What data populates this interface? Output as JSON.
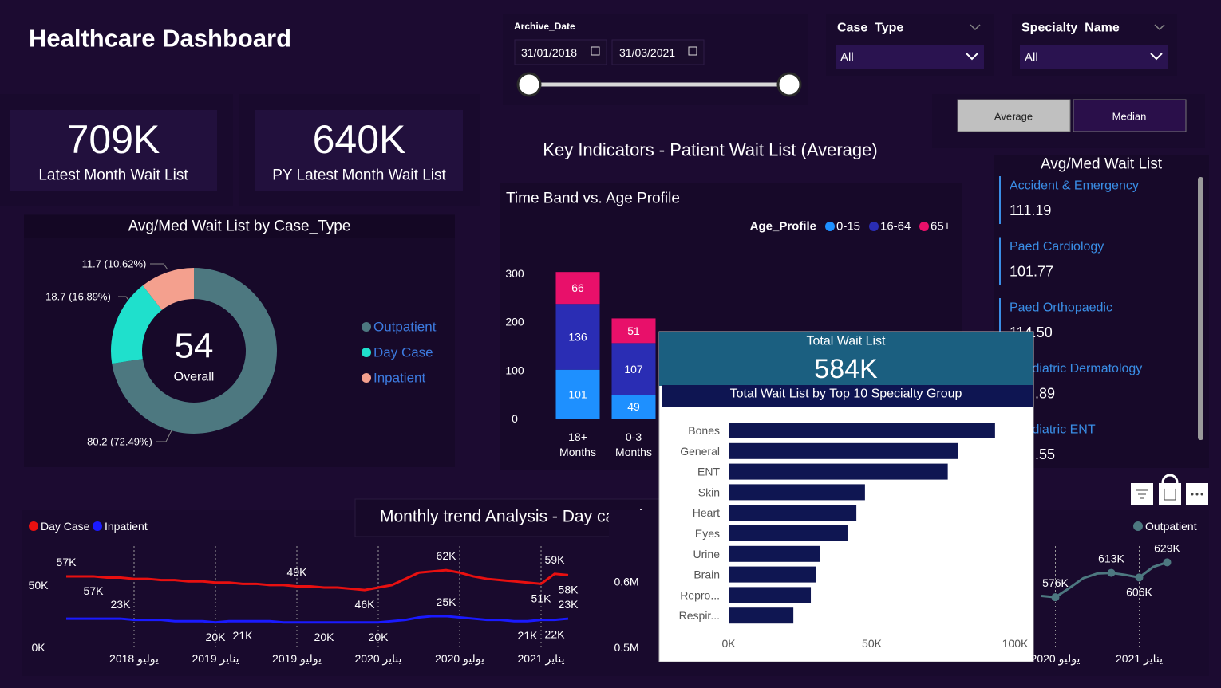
{
  "header": {
    "title": "Healthcare Dashboard"
  },
  "filters": {
    "archive_date": {
      "label": "Archive_Date",
      "start": "31/01/2018",
      "end": "31/03/2021"
    },
    "case_type": {
      "label": "Case_Type",
      "value": "All"
    },
    "specialty": {
      "label": "Specialty_Name",
      "value": "All"
    },
    "toggle": [
      "Average",
      "Median"
    ]
  },
  "kpis": [
    {
      "value": "709K",
      "label": "Latest Month Wait List"
    },
    {
      "value": "640K",
      "label": "PY Latest Month Wait List"
    }
  ],
  "section_title": "Key Indicators - Patient Wait List (Average)",
  "wait_list": {
    "title": "Avg/Med Wait List",
    "items": [
      {
        "name": "Accident & Emergency",
        "value": "111.19"
      },
      {
        "name": "Paed Cardiology",
        "value": "101.77"
      },
      {
        "name": "Paed Orthopaedic",
        "value": "114.50"
      },
      {
        "name": "Paediatric Dermatology",
        "value": ".89"
      },
      {
        "name": "Paediatric ENT",
        "value": ".55"
      }
    ]
  },
  "tooltip": {
    "title": "Total Wait List",
    "value": "584K"
  },
  "chart_data": [
    {
      "type": "donut",
      "title": "Avg/Med Wait List by Case_Type",
      "categories": [
        "Outpatient",
        "Day Case",
        "Inpatient"
      ],
      "values": [
        80.2,
        18.7,
        11.7
      ],
      "value_labels": [
        "80.2 (72.49%)",
        "18.7 (16.89%)",
        "11.7 (10.62%)"
      ],
      "colors": [
        "#4d7880",
        "#1fe0cc",
        "#f4a08e"
      ],
      "center_value": 54,
      "center_label": "Overall"
    },
    {
      "type": "stacked_bar",
      "title": "Time Band vs. Age Profile",
      "legend_title": "Age_Profile",
      "categories": [
        "18+ Months",
        "0-3 Months"
      ],
      "series": [
        {
          "name": "0-15",
          "color": "#1e90ff",
          "values": [
            101,
            49
          ]
        },
        {
          "name": "16-64",
          "color": "#2a2db4",
          "values": [
            136,
            107
          ]
        },
        {
          "name": "65+",
          "color": "#e8106a",
          "values": [
            66,
            51
          ]
        }
      ],
      "ylim": [
        0,
        300
      ],
      "yticks": [
        0,
        100,
        200,
        300
      ]
    },
    {
      "type": "hbar",
      "title": "Total Wait List by Top 10 Specialty Group",
      "categories": [
        "Bones",
        "General",
        "ENT",
        "Skin",
        "Heart",
        "Eyes",
        "Urine",
        "Brain",
        "Repro...",
        "Respir..."
      ],
      "values": [
        93000,
        80000,
        76500,
        47600,
        44600,
        41500,
        32000,
        30400,
        28700,
        22600
      ],
      "color": "#0f1652",
      "xlim": [
        0,
        100000
      ],
      "xticks": [
        {
          "value": 0,
          "label": "0K"
        },
        {
          "value": 50000,
          "label": "50K"
        },
        {
          "value": 100000,
          "label": "100K"
        }
      ]
    },
    {
      "type": "line",
      "title": "Monthly trend Analysis - Day case /",
      "categories": [
        null,
        null,
        null,
        null,
        null,
        "يوليو 2018",
        null,
        null,
        null,
        null,
        null,
        "يناير 2019",
        null,
        null,
        null,
        null,
        null,
        "يوليو 2019",
        null,
        null,
        null,
        null,
        null,
        "يناير 2020",
        null,
        null,
        null,
        null,
        null,
        "يوليو 2020",
        null,
        null,
        null,
        null,
        null,
        "يناير 2021",
        null,
        null
      ],
      "series": [
        {
          "name": "Day Case",
          "color": "#e81010",
          "values": [
            57000,
            57000,
            57000,
            56000,
            56000,
            55000,
            55000,
            54000,
            54000,
            53000,
            53000,
            52000,
            52000,
            51000,
            51000,
            50000,
            50000,
            49000,
            49000,
            48000,
            48000,
            47000,
            46000,
            48000,
            50000,
            55000,
            60000,
            61000,
            62000,
            60000,
            57000,
            55000,
            54000,
            53000,
            52000,
            51000,
            59000,
            58000
          ],
          "value_labels": [
            "57K",
            null,
            "57K",
            null,
            null,
            null,
            null,
            null,
            null,
            null,
            null,
            null,
            null,
            null,
            null,
            null,
            null,
            "49K",
            null,
            null,
            null,
            null,
            "46K",
            null,
            null,
            null,
            null,
            null,
            "62K",
            null,
            null,
            null,
            null,
            null,
            null,
            "51K",
            "59K",
            "58K"
          ]
        },
        {
          "name": "Inpatient",
          "color": "#1a1aff",
          "values": [
            23000,
            23000,
            23000,
            23000,
            23000,
            22000,
            22000,
            22000,
            21000,
            21000,
            21000,
            20000,
            21000,
            21000,
            21000,
            21000,
            20000,
            20000,
            20000,
            20000,
            20000,
            20000,
            20000,
            20000,
            21000,
            22000,
            24000,
            25000,
            25000,
            24000,
            23000,
            22000,
            22000,
            21000,
            21000,
            22000,
            22000,
            23000
          ],
          "value_labels": [
            null,
            null,
            null,
            null,
            "23K",
            null,
            null,
            null,
            null,
            null,
            null,
            "20K",
            null,
            "21K",
            null,
            null,
            null,
            null,
            null,
            "20K",
            null,
            null,
            null,
            "20K",
            null,
            null,
            null,
            null,
            "25K",
            null,
            null,
            null,
            null,
            null,
            "21K",
            null,
            "22K",
            "23K"
          ]
        }
      ],
      "ylim": [
        0,
        80000
      ],
      "yticks": [
        {
          "value": 0,
          "label": "0K"
        },
        {
          "value": 50000,
          "label": "50K"
        }
      ]
    },
    {
      "type": "line",
      "categories": [
        null,
        "يوليو 2020",
        null,
        null,
        null,
        null,
        null,
        "يناير 2021",
        null,
        null
      ],
      "series": [
        {
          "name": "Outpatient",
          "color": "#4d7880",
          "values": [
            578000,
            576000,
            590000,
            605000,
            612000,
            613000,
            610000,
            606000,
            622000,
            629000
          ],
          "value_labels": [
            null,
            "576K",
            null,
            null,
            null,
            "613K",
            null,
            "606K",
            null,
            "629K"
          ]
        }
      ],
      "ylim": [
        500000,
        650000
      ],
      "yticks": [
        {
          "value": 500000,
          "label": "0.5M"
        },
        {
          "value": 600000,
          "label": "0.6M"
        }
      ]
    }
  ]
}
